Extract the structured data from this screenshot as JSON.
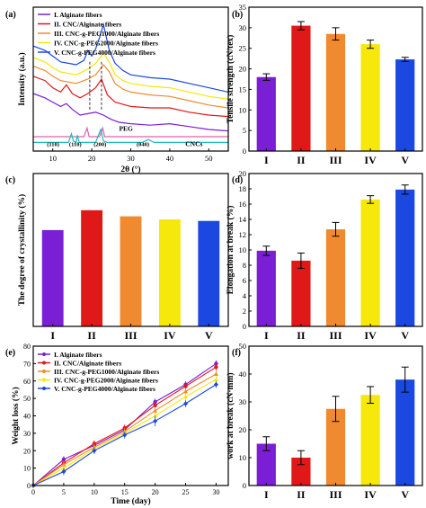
{
  "colors": {
    "purple": "#7a1fd6",
    "red": "#e01818",
    "orange": "#f08a30",
    "yellow": "#f5e80a",
    "blue": "#1a48e0"
  },
  "chart_data": [
    {
      "panel": "(a)",
      "type": "line",
      "xlabel": "2θ (°)",
      "ylabel": "Intensity (a.u.)",
      "xlim": [
        5,
        55
      ],
      "xticks": [
        10,
        20,
        30,
        40,
        50
      ],
      "yticks_shown": false,
      "legend": {
        "placement": "top-left",
        "entries": [
          "I. Alginate fibers",
          "II. CNC/Alginate fibers",
          "III. CNC-g-PEG1000/Alginate fibers",
          "IV. CNC-g-PEG2000/Alginate fibers",
          "V. CNC-g-PEG4000/Alginate fibers"
        ]
      },
      "annotations": [
        "PEG",
        "CNCs",
        "(110)",
        "(110)",
        "(200)",
        "(040)"
      ],
      "series": [
        {
          "name": "I. Alginate fibers",
          "color": "purple",
          "x": [
            5,
            8,
            10,
            12,
            13.5,
            15,
            17,
            19,
            21,
            23,
            25,
            27,
            30,
            35,
            40,
            45,
            50,
            55
          ],
          "y": [
            0.4,
            0.37,
            0.34,
            0.31,
            0.33,
            0.29,
            0.25,
            0.26,
            0.27,
            0.25,
            0.22,
            0.2,
            0.19,
            0.18,
            0.19,
            0.17,
            0.15,
            0.14
          ]
        },
        {
          "name": "II. CNC/Alginate fibers",
          "color": "red",
          "x": [
            5,
            8,
            10,
            12,
            13.5,
            15,
            17,
            19,
            21,
            22.5,
            24,
            26,
            30,
            35,
            40,
            45,
            50,
            55
          ],
          "y": [
            0.52,
            0.49,
            0.44,
            0.41,
            0.46,
            0.4,
            0.37,
            0.4,
            0.44,
            0.5,
            0.39,
            0.34,
            0.31,
            0.3,
            0.3,
            0.27,
            0.25,
            0.24
          ]
        },
        {
          "name": "III. CNC-g-PEG1000/Alginate fibers",
          "color": "orange",
          "x": [
            5,
            8,
            10,
            12,
            14,
            16,
            19,
            21,
            23,
            24.5,
            26,
            28,
            30,
            35,
            40,
            45,
            50,
            55
          ],
          "y": [
            0.59,
            0.56,
            0.52,
            0.49,
            0.48,
            0.47,
            0.5,
            0.53,
            0.6,
            0.55,
            0.47,
            0.43,
            0.41,
            0.39,
            0.38,
            0.35,
            0.32,
            0.3
          ]
        },
        {
          "name": "IV. CNC-g-PEG2000/Alginate fibers",
          "color": "yellow",
          "x": [
            5,
            8,
            10,
            12,
            14,
            16,
            19,
            21,
            23,
            24.5,
            26,
            28,
            30,
            35,
            40,
            45,
            50,
            55
          ],
          "y": [
            0.65,
            0.62,
            0.58,
            0.55,
            0.54,
            0.53,
            0.57,
            0.61,
            0.68,
            0.62,
            0.53,
            0.49,
            0.47,
            0.45,
            0.44,
            0.41,
            0.38,
            0.36
          ]
        },
        {
          "name": "V. CNC-g-PEG4000/Alginate fibers",
          "color": "blue",
          "x": [
            5,
            8,
            10,
            12,
            14,
            16,
            18,
            19,
            20,
            21,
            22,
            23,
            24.5,
            26,
            28,
            30,
            35,
            40,
            45,
            50,
            55
          ],
          "y": [
            0.73,
            0.7,
            0.66,
            0.62,
            0.61,
            0.6,
            0.63,
            0.7,
            0.66,
            0.71,
            0.79,
            0.88,
            0.7,
            0.61,
            0.56,
            0.53,
            0.51,
            0.5,
            0.47,
            0.44,
            0.41
          ]
        },
        {
          "name": "PEG",
          "color": "#e060a8",
          "x": [
            5,
            15,
            18,
            18.8,
            19.3,
            20,
            22,
            22.8,
            23.3,
            24,
            26,
            55
          ],
          "y": [
            0.1,
            0.1,
            0.1,
            0.16,
            0.1,
            0.1,
            0.1,
            0.16,
            0.1,
            0.1,
            0.1,
            0.1
          ]
        },
        {
          "name": "CNCs",
          "color": "#20b8c0",
          "x": [
            5,
            14,
            14.8,
            15.3,
            16,
            16.3,
            16.8,
            18,
            21,
            22.3,
            23,
            24,
            33,
            34.5,
            36,
            55
          ],
          "y": [
            0.06,
            0.06,
            0.12,
            0.07,
            0.06,
            0.11,
            0.06,
            0.06,
            0.06,
            0.15,
            0.07,
            0.06,
            0.06,
            0.08,
            0.06,
            0.06
          ]
        }
      ]
    },
    {
      "panel": "(b)",
      "type": "bar",
      "ylabel": "Tensile strength (cN/tex)",
      "categories": [
        "I",
        "II",
        "III",
        "IV",
        "V"
      ],
      "ylim": [
        0,
        35
      ],
      "yticks": [
        0,
        5,
        10,
        15,
        20,
        25,
        30,
        35
      ],
      "values": [
        18,
        30.5,
        28.5,
        26,
        22.3
      ],
      "errors": [
        0.8,
        1.0,
        1.5,
        1.0,
        0.5
      ],
      "bar_colors": [
        "purple",
        "red",
        "orange",
        "yellow",
        "blue"
      ]
    },
    {
      "panel": "(c)",
      "type": "bar",
      "ylabel": "The degree of crystallinity (%)",
      "categories": [
        "I",
        "II",
        "III",
        "IV",
        "V"
      ],
      "ylim": [
        0,
        1
      ],
      "yticks_shown": false,
      "values": [
        0.63,
        0.76,
        0.72,
        0.7,
        0.69
      ],
      "bar_colors": [
        "purple",
        "red",
        "orange",
        "yellow",
        "blue"
      ]
    },
    {
      "panel": "(d)",
      "type": "bar",
      "ylabel": "Elongation at break (%)",
      "categories": [
        "I",
        "II",
        "III",
        "IV",
        "V"
      ],
      "ylim": [
        0,
        20
      ],
      "yticks": [
        0,
        2,
        4,
        6,
        8,
        10,
        12,
        14,
        16,
        18,
        20
      ],
      "values": [
        9.9,
        8.6,
        12.7,
        16.6,
        17.9
      ],
      "errors": [
        0.6,
        1.0,
        0.9,
        0.5,
        0.6
      ],
      "bar_colors": [
        "purple",
        "red",
        "orange",
        "yellow",
        "blue"
      ]
    },
    {
      "panel": "(e)",
      "type": "line",
      "xlabel": "Time (day)",
      "ylabel": "Weight loss (%)",
      "xlim": [
        0,
        32
      ],
      "ylim": [
        0,
        80
      ],
      "xticks": [
        0,
        5,
        10,
        15,
        20,
        25,
        30
      ],
      "yticks": [
        0,
        10,
        20,
        30,
        40,
        50,
        60,
        70,
        80
      ],
      "legend": {
        "placement": "top-left",
        "entries": [
          "I. Alginate fibers",
          "II. CNC/Alginate fibers",
          "III. CNC-g-PEG1000/Alginate fibers",
          "IV. CNC-g-PEG2000/Alginate fibers",
          "V. CNC-g-PEG4000/Alginate fibers"
        ]
      },
      "x": [
        0,
        5,
        10,
        15,
        20,
        25,
        30
      ],
      "series": [
        {
          "name": "I. Alginate fibers",
          "color": "purple",
          "values": [
            0,
            15,
            23,
            32,
            48,
            58,
            70
          ],
          "errors": [
            0,
            2,
            2,
            2,
            2,
            2,
            2
          ]
        },
        {
          "name": "II. CNC/Alginate fibers",
          "color": "red",
          "values": [
            0,
            13,
            24,
            33,
            46,
            57,
            68
          ],
          "errors": [
            0,
            2,
            2,
            2,
            2,
            2,
            2
          ]
        },
        {
          "name": "III. CNC-g-PEG1000/Alginate fibers",
          "color": "orange",
          "values": [
            0,
            12,
            22,
            31,
            43,
            54,
            64
          ],
          "errors": [
            0,
            2,
            2,
            2,
            2,
            2,
            2
          ]
        },
        {
          "name": "IV. CNC-g-PEG2000/Alginate fibers",
          "color": "yellow",
          "values": [
            0,
            10,
            21,
            30,
            40,
            51,
            61
          ],
          "errors": [
            0,
            2,
            2,
            2,
            2,
            2,
            2
          ]
        },
        {
          "name": "V. CNC-g-PEG4000/Alginate fibers",
          "color": "blue",
          "values": [
            0,
            8,
            20,
            29,
            37,
            47,
            58
          ],
          "errors": [
            0,
            2,
            2,
            2,
            3,
            2,
            2
          ]
        }
      ]
    },
    {
      "panel": "(f)",
      "type": "bar",
      "ylabel": "work at break (cN·mm)",
      "categories": [
        "I",
        "II",
        "III",
        "IV",
        "V"
      ],
      "ylim": [
        0,
        50
      ],
      "yticks": [
        0,
        10,
        20,
        30,
        40,
        50
      ],
      "values": [
        15,
        10,
        27.5,
        32.5,
        38
      ],
      "errors": [
        2.5,
        2.5,
        4.5,
        3.0,
        4.5
      ],
      "bar_colors": [
        "purple",
        "red",
        "orange",
        "yellow",
        "blue"
      ]
    }
  ]
}
